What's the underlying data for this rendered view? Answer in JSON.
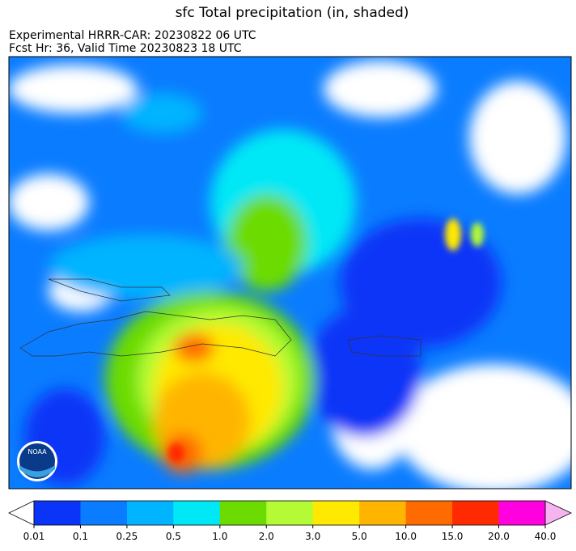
{
  "title": "sfc Total precipitation (in, shaded)",
  "subtitle": [
    "Experimental HRRR-CAR: 20230822 06 UTC",
    "Fcst Hr: 36, Valid Time 20230823 18 UTC"
  ],
  "logo": "NOAA",
  "colorbar": {
    "ticks": [
      "0.01",
      "0.1",
      "0.25",
      "0.5",
      "1.0",
      "2.0",
      "3.0",
      "5.0",
      "10.0",
      "15.0",
      "20.0",
      "40.0"
    ],
    "colors": [
      "#0a34f7",
      "#0a7cff",
      "#00b4ff",
      "#00e8f6",
      "#6cdc00",
      "#b4fb35",
      "#ffe900",
      "#ffb500",
      "#ff6b00",
      "#ff2a00",
      "#ff00de"
    ],
    "under_color": "#ffffff",
    "over_color": "#f5b4f0"
  }
}
